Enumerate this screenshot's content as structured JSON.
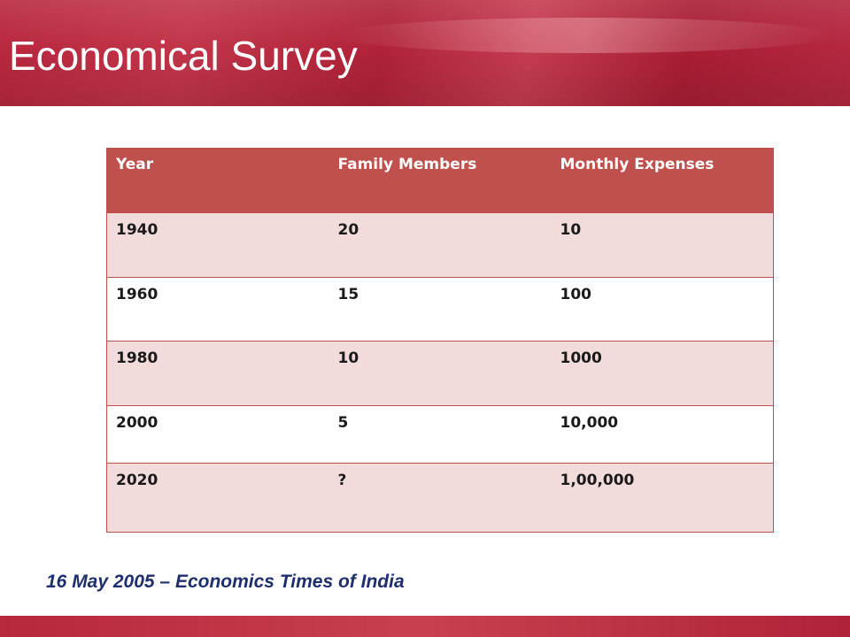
{
  "slide": {
    "title": "Economical Survey",
    "caption": "16 May 2005 – Economics Times of India",
    "colors": {
      "accent": "#b8273d",
      "table_header": "#c0504d",
      "row_band": "#f2dcdb",
      "caption_text": "#1f2f6e"
    }
  },
  "table": {
    "headers": [
      "Year",
      "Family Members",
      "Monthly Expenses"
    ],
    "rows": [
      [
        "1940",
        "20",
        "10"
      ],
      [
        "1960",
        "15",
        "100"
      ],
      [
        "1980",
        "10",
        "1000"
      ],
      [
        "2000",
        "5",
        "10,000"
      ],
      [
        "2020",
        "?",
        "1,00,000"
      ]
    ]
  }
}
